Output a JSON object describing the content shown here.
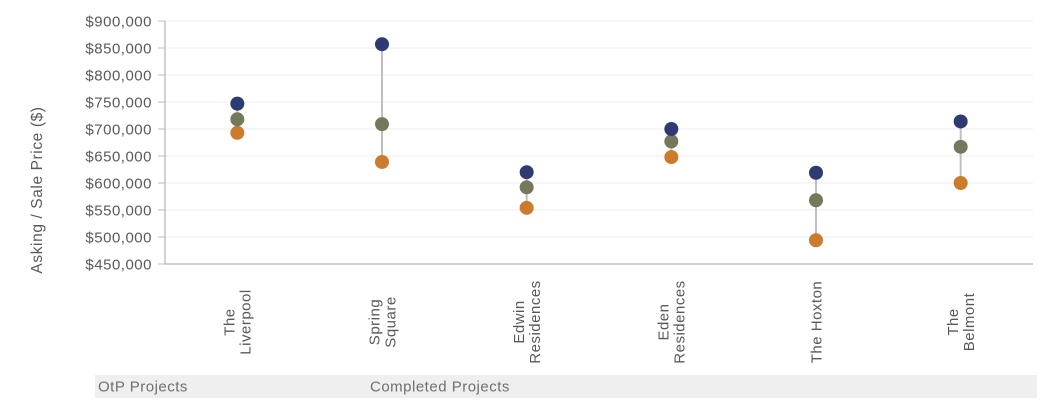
{
  "chart_data": {
    "type": "scatter",
    "title": "",
    "xlabel": "",
    "ylabel": "Asking / Sale Price ($)",
    "ylim": [
      450000,
      900000
    ],
    "ytick_step": 50000,
    "ytick_labels": [
      "$900,000",
      "$850,000",
      "$800,000",
      "$750,000",
      "$700,000",
      "$650,000",
      "$600,000",
      "$550,000",
      "$500,000",
      "$450,000"
    ],
    "grid": true,
    "legend": "none",
    "categories": [
      "The Liverpool",
      "Spring Square",
      "Edwin Residences",
      "Eden Residences",
      "The Hoxton",
      "The Belmont"
    ],
    "category_label_lines": [
      [
        "The",
        "Liverpool"
      ],
      [
        "Spring",
        "Square"
      ],
      [
        "Edwin",
        "Residences"
      ],
      [
        "Eden",
        "Residences"
      ],
      [
        "The Hoxton"
      ],
      [
        "The",
        "Belmont"
      ]
    ],
    "group_labels": [
      "OtP Projects",
      "Completed Projects"
    ],
    "series": [
      {
        "name": "navy",
        "color": "#2E3A72",
        "values": [
          747000,
          857000,
          620000,
          700000,
          619000,
          714000
        ]
      },
      {
        "name": "olive",
        "color": "#75795B",
        "values": [
          718000,
          709000,
          592000,
          677000,
          568000,
          667000
        ]
      },
      {
        "name": "orange",
        "color": "#CB7B2B",
        "values": [
          693000,
          639000,
          554000,
          648000,
          494000,
          600000
        ]
      }
    ],
    "colors": {
      "gridline": "#ededed",
      "axis_line": "#a6a6a6",
      "tick": "#bfbfbf",
      "axis_text": "#595959",
      "connector": "#bfbfbf",
      "strip_bg": "#efefef",
      "strip_text": "#6f6f6f"
    }
  }
}
